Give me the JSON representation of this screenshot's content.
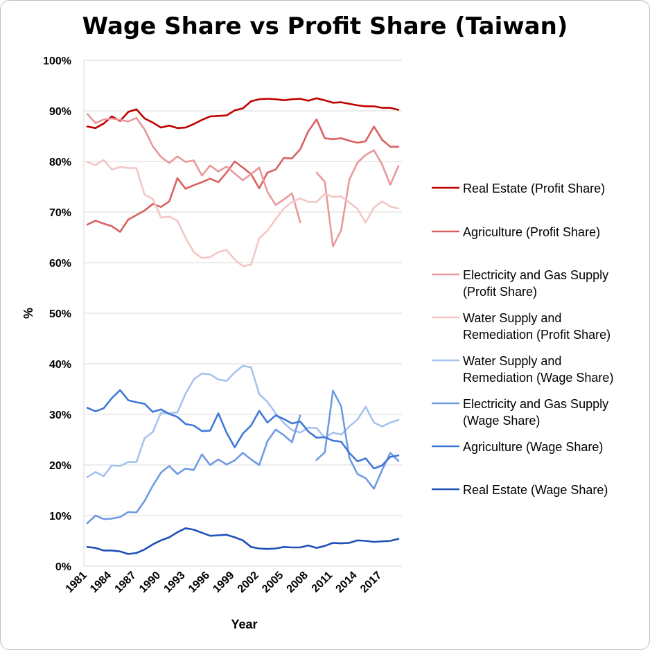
{
  "chart_data": {
    "type": "line",
    "title": "Wage Share vs Profit Share (Taiwan)",
    "xlabel": "Year",
    "ylabel": "%",
    "ylim": [
      0,
      100
    ],
    "y_ticks": [
      "0%",
      "10%",
      "20%",
      "30%",
      "40%",
      "50%",
      "60%",
      "70%",
      "80%",
      "90%",
      "100%"
    ],
    "x_tick_labels": [
      "1981",
      "1984",
      "1987",
      "1990",
      "1993",
      "1996",
      "1999",
      "2002",
      "2005",
      "2008",
      "2011",
      "2014",
      "2017"
    ],
    "x": [
      1981,
      1982,
      1983,
      1984,
      1985,
      1986,
      1987,
      1988,
      1989,
      1990,
      1991,
      1992,
      1993,
      1994,
      1995,
      1996,
      1997,
      1998,
      1999,
      2000,
      2001,
      2002,
      2003,
      2004,
      2005,
      2006,
      2007,
      2008,
      2009,
      2010,
      2011,
      2012,
      2013,
      2014,
      2015,
      2016,
      2017,
      2018,
      2019
    ],
    "grid": "horizontal",
    "legend_position": "right",
    "series": [
      {
        "name": "Real Estate (Profit Share)",
        "color": "#c00000",
        "values": [
          86.9,
          86.6,
          87.5,
          88.9,
          88.0,
          89.8,
          90.3,
          88.5,
          87.7,
          86.7,
          87.1,
          86.6,
          86.7,
          87.4,
          88.2,
          88.9,
          89.0,
          89.1,
          90.1,
          90.5,
          91.9,
          92.3,
          92.4,
          92.3,
          92.1,
          92.3,
          92.4,
          92.0,
          92.5,
          92.1,
          91.6,
          91.7,
          91.4,
          91.1,
          90.9,
          90.9,
          90.6,
          90.6,
          90.2
        ]
      },
      {
        "name": "Agriculture (Profit Share)",
        "color": "#d96060",
        "values": [
          67.5,
          68.3,
          67.7,
          67.2,
          66.1,
          68.5,
          69.4,
          70.3,
          71.6,
          71.0,
          72.1,
          76.7,
          74.6,
          75.3,
          75.9,
          76.6,
          75.9,
          77.8,
          80.0,
          78.8,
          77.5,
          74.7,
          77.8,
          78.4,
          80.7,
          80.6,
          82.4,
          86.0,
          88.3,
          84.6,
          84.4,
          84.6,
          84.1,
          83.7,
          84.0,
          86.9,
          84.3,
          82.9,
          82.9
        ]
      },
      {
        "name": "Electricity and Gas Supply (Profit Share)",
        "color": "#e8989a",
        "values": [
          89.4,
          87.6,
          88.3,
          88.5,
          88.2,
          87.9,
          88.6,
          86.3,
          83.0,
          80.9,
          79.7,
          81.0,
          79.9,
          80.2,
          77.2,
          79.2,
          78.0,
          79.0,
          77.6,
          76.3,
          77.5,
          78.8,
          74.0,
          71.4,
          72.5,
          73.7,
          68.0,
          null,
          77.8,
          76.0,
          63.2,
          66.4,
          76.4,
          79.8,
          81.3,
          82.2,
          79.4,
          75.4,
          79.1
        ]
      },
      {
        "name": "Water Supply and Remediation (Profit Share)",
        "color": "#f4c6c6",
        "values": [
          79.9,
          79.3,
          80.3,
          78.4,
          78.9,
          78.7,
          78.7,
          73.4,
          72.6,
          68.9,
          69.1,
          68.3,
          64.9,
          62.1,
          60.9,
          61.1,
          62.1,
          62.5,
          60.6,
          59.3,
          59.6,
          64.8,
          66.3,
          68.6,
          70.7,
          72.0,
          72.7,
          72.0,
          72.0,
          73.6,
          73.0,
          73.1,
          71.9,
          70.6,
          67.9,
          70.9,
          72.1,
          71.1,
          70.7
        ]
      },
      {
        "name": "Water Supply and Remediation (Wage Share)",
        "color": "#a6c2ee",
        "values": [
          17.6,
          18.6,
          17.8,
          19.9,
          19.8,
          20.6,
          20.6,
          25.3,
          26.5,
          30.3,
          30.2,
          30.4,
          34.1,
          36.9,
          38.1,
          37.9,
          36.9,
          36.6,
          38.3,
          39.6,
          39.3,
          34.0,
          32.5,
          30.2,
          28.3,
          26.9,
          26.4,
          27.4,
          27.3,
          25.4,
          26.4,
          26.0,
          27.6,
          29.0,
          31.5,
          28.4,
          27.6,
          28.4,
          28.9
        ]
      },
      {
        "name": "Electricity and Gas Supply (Wage Share)",
        "color": "#6f9ae2",
        "values": [
          8.5,
          10.0,
          9.3,
          9.4,
          9.7,
          10.7,
          10.6,
          12.9,
          15.9,
          18.5,
          19.8,
          18.2,
          19.3,
          19.0,
          22.1,
          20.0,
          21.1,
          20.1,
          20.9,
          22.4,
          21.1,
          20.0,
          24.7,
          27.0,
          25.9,
          24.5,
          29.8,
          null,
          21.0,
          22.5,
          34.7,
          31.6,
          21.4,
          18.2,
          17.4,
          15.3,
          19.0,
          22.4,
          20.8
        ]
      },
      {
        "name": "Agriculture (Wage Share)",
        "color": "#3f78d8",
        "values": [
          31.3,
          30.6,
          31.2,
          33.2,
          34.8,
          32.8,
          32.4,
          32.1,
          30.5,
          31.0,
          30.1,
          29.5,
          28.1,
          27.8,
          26.7,
          26.8,
          30.2,
          26.4,
          23.5,
          26.2,
          27.8,
          30.7,
          28.4,
          29.8,
          29.1,
          28.2,
          28.6,
          26.6,
          25.4,
          25.5,
          24.8,
          24.6,
          22.4,
          20.7,
          21.3,
          19.3,
          19.9,
          21.6,
          21.9
        ]
      },
      {
        "name": "Real Estate (Wage Share)",
        "color": "#1f50b8",
        "values": [
          3.8,
          3.6,
          3.1,
          3.1,
          2.9,
          2.4,
          2.6,
          3.3,
          4.3,
          5.1,
          5.7,
          6.7,
          7.5,
          7.2,
          6.6,
          6.0,
          6.1,
          6.2,
          5.7,
          5.1,
          3.8,
          3.5,
          3.4,
          3.5,
          3.8,
          3.7,
          3.7,
          4.1,
          3.6,
          4.0,
          4.6,
          4.5,
          4.6,
          5.1,
          5.0,
          4.8,
          4.9,
          5.0,
          5.4
        ]
      }
    ]
  }
}
